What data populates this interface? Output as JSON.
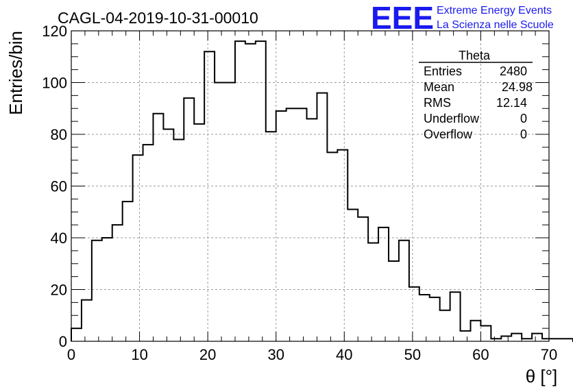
{
  "title": "CAGL-04-2019-10-31-00010",
  "logo": {
    "mark": "EEE",
    "line1": "Extreme Energy Events",
    "line2": "La Scienza nelle Scuole",
    "color": "#1a1aee"
  },
  "stats": {
    "name": "Theta",
    "rows": [
      {
        "label": "Entries",
        "value": "2480"
      },
      {
        "label": "Mean",
        "value": "24.98"
      },
      {
        "label": "RMS",
        "value": "12.14"
      },
      {
        "label": "Underflow",
        "value": "0"
      },
      {
        "label": "Overflow",
        "value": "0"
      }
    ]
  },
  "chart_data": {
    "type": "histogram",
    "xlabel": "θ [°]",
    "ylabel": "Entries/bin",
    "xlim": [
      0,
      70
    ],
    "ylim": [
      0,
      120
    ],
    "xticks": [
      0,
      10,
      20,
      30,
      40,
      50,
      60,
      70
    ],
    "yticks": [
      0,
      20,
      40,
      60,
      80,
      100,
      120
    ],
    "grid": true,
    "bin_width": 1.5,
    "bins_start": 0,
    "values": [
      5,
      16,
      39,
      40,
      45,
      54,
      72,
      76,
      88,
      82,
      78,
      94,
      84,
      112,
      100,
      100,
      116,
      115,
      116,
      81,
      89,
      90,
      90,
      86,
      96,
      73,
      74,
      51,
      48,
      38,
      44,
      31,
      39,
      21,
      18,
      17,
      12,
      19,
      4,
      8,
      6,
      1,
      2,
      3,
      1,
      3,
      1,
      1,
      1,
      0
    ]
  }
}
